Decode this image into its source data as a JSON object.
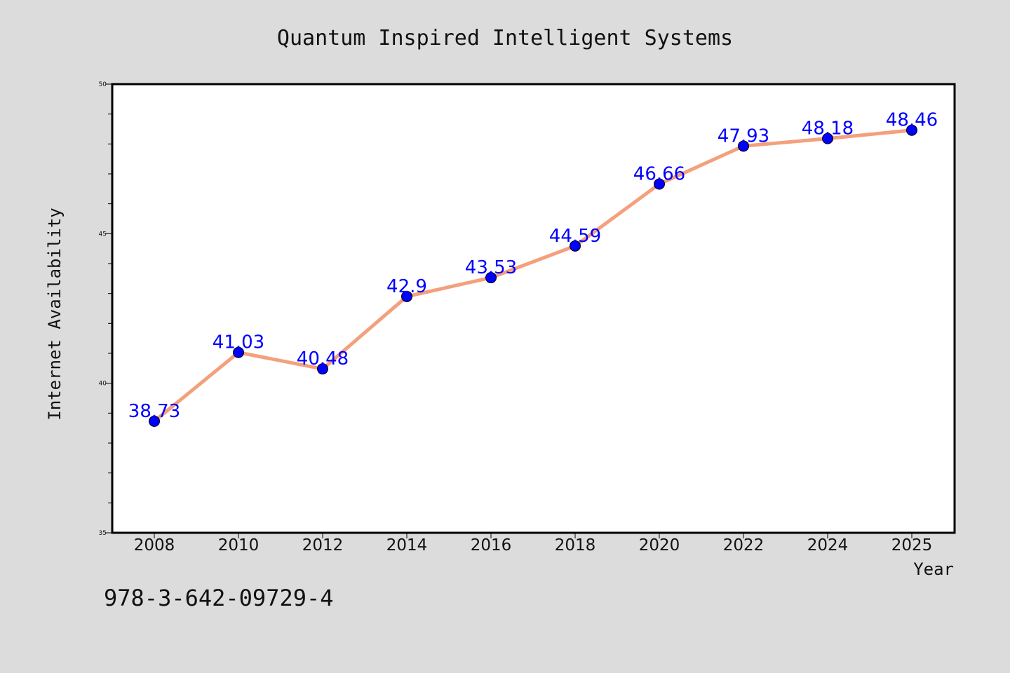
{
  "chart_data": {
    "type": "line",
    "title": "Quantum Inspired Intelligent Systems",
    "xlabel": "Year",
    "ylabel": "Internet Availability",
    "categories": [
      "2008",
      "2010",
      "2012",
      "2014",
      "2016",
      "2018",
      "2020",
      "2022",
      "2024",
      "2025"
    ],
    "series": [
      {
        "values": [
          38.73,
          41.03,
          40.48,
          42.9,
          43.53,
          44.59,
          46.66,
          47.93,
          48.18,
          48.46
        ]
      }
    ],
    "data_labels": [
      "38.73",
      "41.03",
      "40.48",
      "42.9",
      "43.53",
      "44.59",
      "46.66",
      "47.93",
      "48.18",
      "48.46"
    ],
    "ylim": [
      35,
      50
    ],
    "yticks": [
      "35",
      "40",
      "45",
      "50"
    ],
    "yminor_step": 1,
    "grid": false,
    "colors": {
      "background": "#dcdcdc",
      "plot_area": "#ffffff",
      "line": "#f4a07c",
      "marker": "#0000ff",
      "data_label": "#0000ff"
    }
  },
  "footnote": "978-3-642-09729-4"
}
